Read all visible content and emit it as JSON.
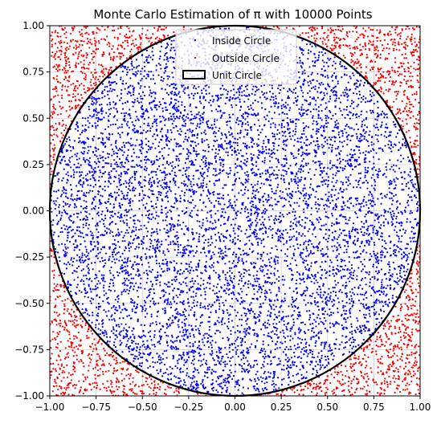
{
  "chart_data": {
    "type": "scatter",
    "title": "Monte Carlo Estimation of π with 10000 Points",
    "xlabel": "",
    "ylabel": "",
    "xlim": [
      -1.0,
      1.0
    ],
    "ylim": [
      -1.0,
      1.0
    ],
    "x_ticks": [
      "−1.00",
      "−0.75",
      "−0.50",
      "−0.25",
      "0.00",
      "0.25",
      "0.50",
      "0.75",
      "1.00"
    ],
    "y_ticks": [
      "1.00",
      "0.75",
      "0.50",
      "0.25",
      "0.00",
      "−0.25",
      "−0.50",
      "−0.75",
      "−1.00"
    ],
    "grid": true,
    "legend_position": "upper center",
    "total_points": 10000,
    "series": [
      {
        "name": "Inside Circle",
        "color": "#0000ff",
        "marker": "dot"
      },
      {
        "name": "Outside Circle",
        "color": "#ff0000",
        "marker": "dot"
      }
    ],
    "circle": {
      "name": "Unit Circle",
      "center": [
        0,
        0
      ],
      "radius": 1,
      "color": "#000000"
    }
  }
}
